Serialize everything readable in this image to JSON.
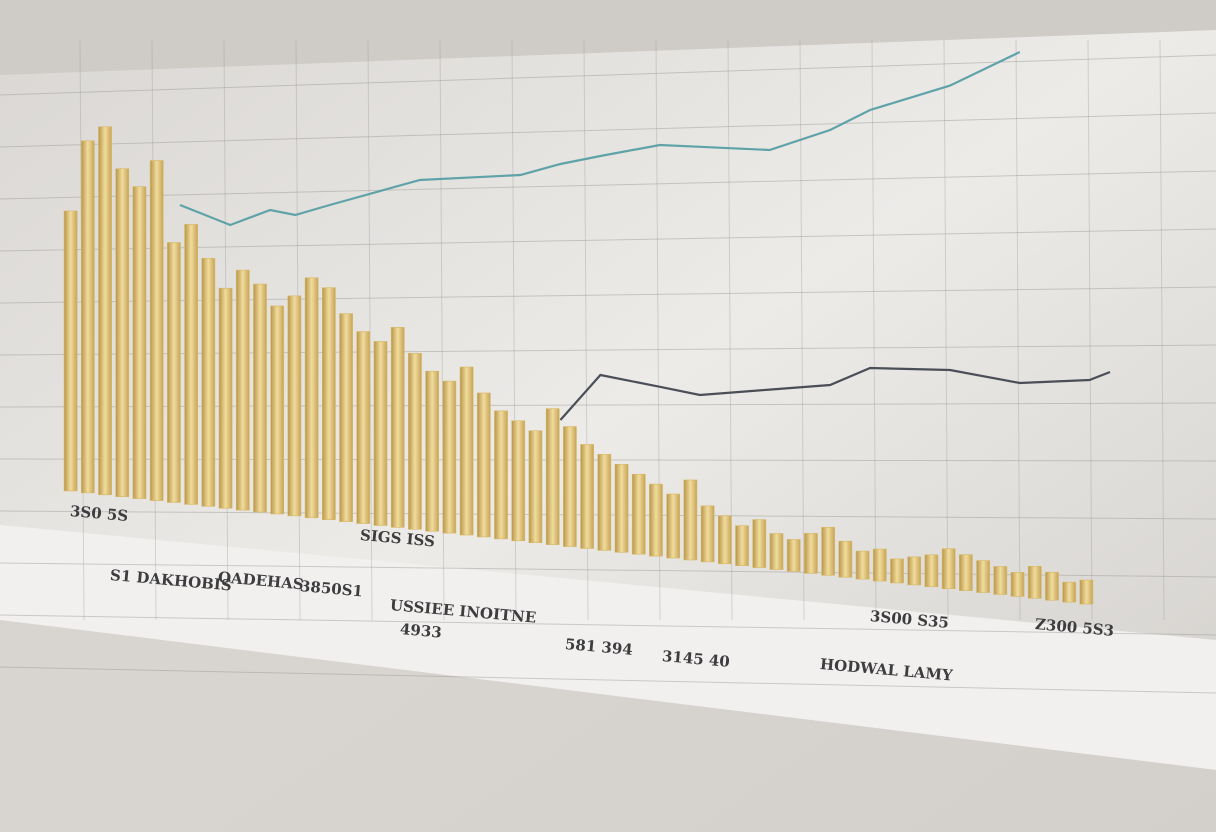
{
  "chart_data": [
    {
      "type": "bar",
      "categories": [
        null,
        null,
        null,
        null,
        null,
        null,
        null,
        null,
        null,
        null,
        null,
        null,
        null,
        null,
        null,
        null,
        null,
        null,
        null,
        null,
        null,
        null,
        null,
        null,
        null,
        null,
        null,
        null,
        null,
        null,
        null,
        null,
        null,
        null,
        null,
        null,
        null,
        null,
        null,
        null,
        null,
        null,
        null,
        null,
        null,
        null,
        null,
        null,
        null,
        null,
        null,
        null,
        null,
        null,
        null,
        null,
        null,
        null,
        null,
        null
      ],
      "values": [
        70,
        88,
        92,
        82,
        78,
        85,
        65,
        70,
        62,
        55,
        60,
        57,
        52,
        55,
        60,
        58,
        52,
        48,
        46,
        50,
        44,
        40,
        38,
        42,
        36,
        32,
        30,
        28,
        34,
        30,
        26,
        24,
        22,
        20,
        18,
        16,
        20,
        14,
        12,
        10,
        12,
        9,
        8,
        10,
        12,
        9,
        7,
        8,
        6,
        7,
        8,
        10,
        9,
        8,
        7,
        6,
        8,
        7,
        5,
        6
      ],
      "color": "#d8b765",
      "ylim": [
        0,
        100
      ],
      "annotations": [
        "3S0 5S",
        "SIGS ISS",
        "3850S1",
        "4933",
        "USSIEE INOITNE",
        "OADEHAS",
        "S1 DAKHOBIS",
        "581 394",
        "3145 40",
        "HODWAL LAMY",
        "3S00 S35",
        "Z300 5S3"
      ]
    },
    {
      "type": "line",
      "x": [
        0,
        5.4,
        9.7,
        12.4,
        16.1,
        25.8,
        36.6,
        40.9,
        45.2,
        51.6,
        55.9,
        63.4,
        69.9,
        74.2,
        82.8,
        90.3,
        97.8,
        100
      ],
      "series": [
        {
          "color": "#5fa3a8",
          "values": [
            58.75,
            53.75,
            57.5,
            56.25,
            58.75,
            65,
            66.25,
            69,
            71,
            73.75,
            73.3,
            72.5,
            77.5,
            82.5,
            88.6,
            97,
            null,
            null
          ]
        },
        {
          "color": "#4a4f57",
          "values": [
            null,
            null,
            null,
            null,
            null,
            null,
            null,
            5,
            16.25,
            13.3,
            11.25,
            12.6,
            13.75,
            18,
            17.5,
            14.25,
            15,
            17
          ]
        }
      ],
      "xlim": [
        0,
        100
      ],
      "ylim": [
        0,
        100
      ]
    }
  ]
}
